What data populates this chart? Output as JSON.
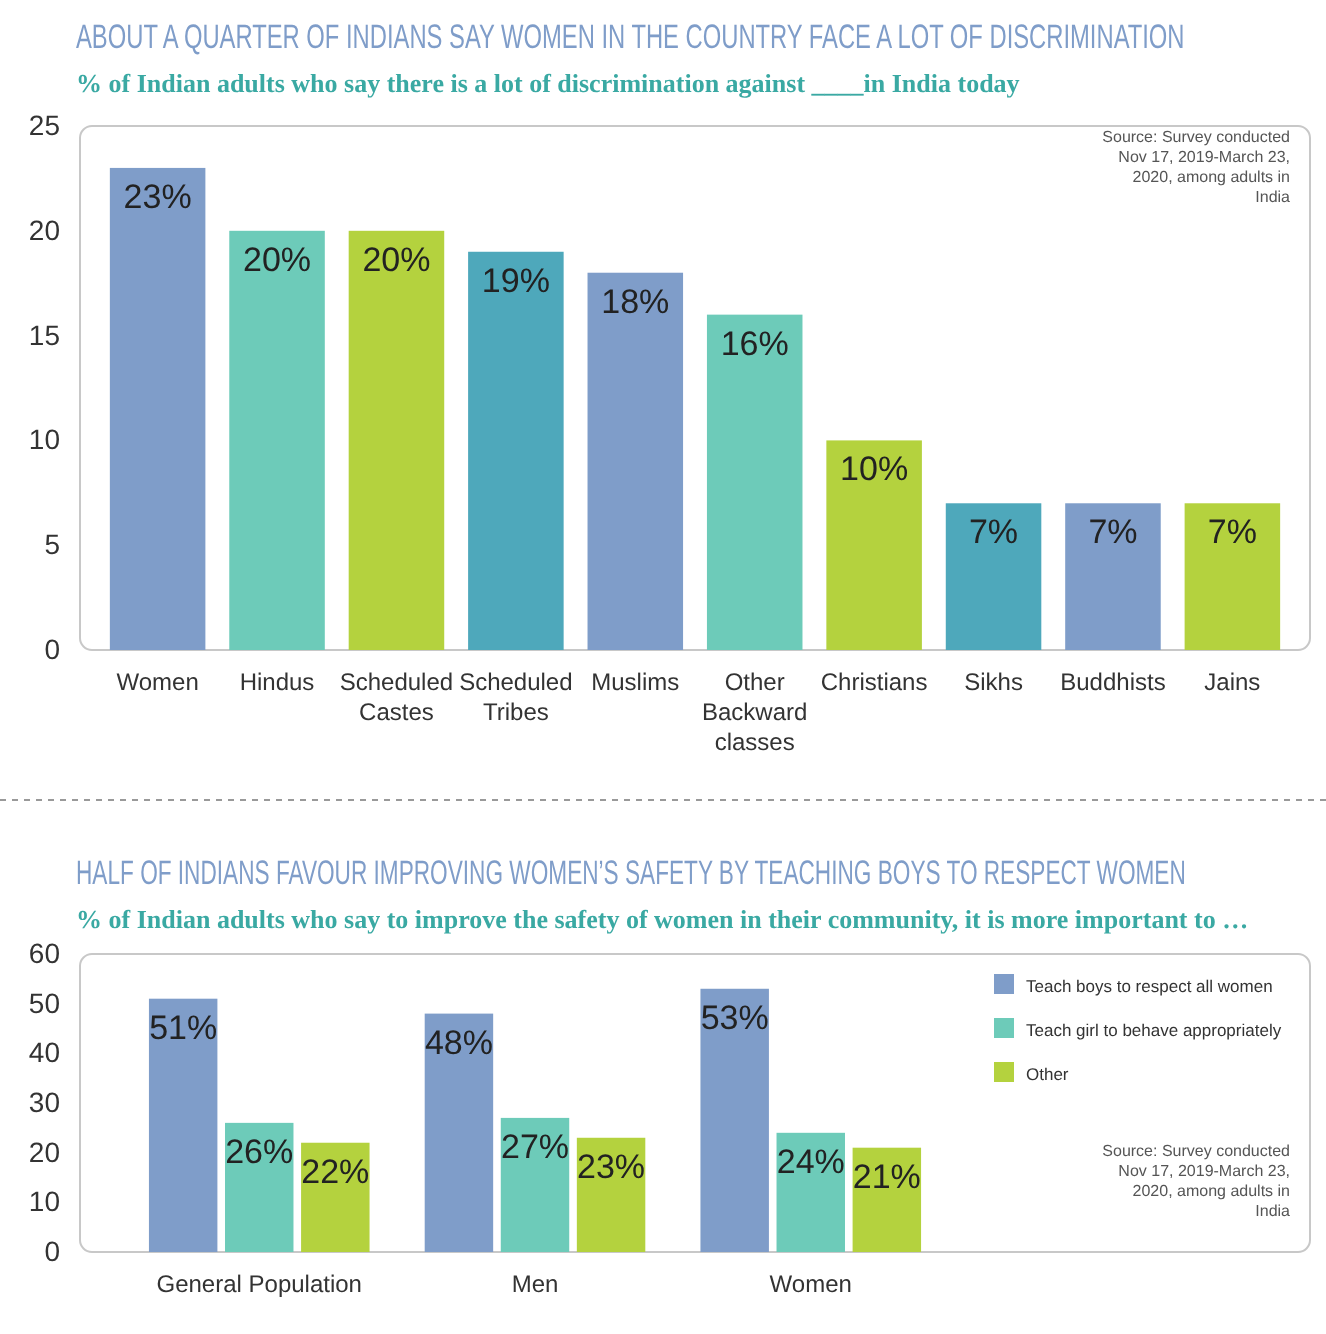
{
  "chart_data": [
    {
      "type": "bar",
      "title": "ABOUT A QUARTER OF INDIANS SAY WOMEN IN THE COUNTRY FACE A LOT OF DISCRIMINATION",
      "subtitle": "% of Indian adults who say there is a lot of discrimination against ____in India today",
      "categories": [
        "Women",
        "Hindus",
        "Scheduled Castes",
        "Scheduled Tribes",
        "Muslims",
        "Other Backward classes",
        "Christians",
        "Sikhs",
        "Buddhists",
        "Jains"
      ],
      "values": [
        23,
        20,
        20,
        19,
        18,
        16,
        10,
        7,
        7,
        7
      ],
      "value_labels": [
        "23%",
        "20%",
        "20%",
        "19%",
        "18%",
        "16%",
        "10%",
        "7%",
        "7%",
        "7%"
      ],
      "colors": [
        "#7f9dc9",
        "#6dcbb9",
        "#b4d23e",
        "#4ea8bb",
        "#7f9dc9",
        "#6dcbb9",
        "#b4d23e",
        "#4ea8bb",
        "#7f9dc9",
        "#b4d23e"
      ],
      "ylim": [
        0,
        25
      ],
      "yticks": [
        0,
        5,
        10,
        15,
        20,
        25
      ],
      "grid": false,
      "annotations": [
        "Source: Survey conducted Nov 17, 2019-March 23, 2020, among adults in India"
      ]
    },
    {
      "type": "bar",
      "title": "HALF OF INDIANS FAVOUR IMPROVING WOMEN’S SAFETY BY TEACHING BOYS TO RESPECT WOMEN",
      "subtitle": "% of Indian adults who say to improve the safety of women in their community, it is more important to …",
      "categories": [
        "General Population",
        "Men",
        "Women"
      ],
      "series": [
        {
          "name": "Teach boys to respect all women",
          "color": "#7f9dc9",
          "values": [
            51,
            48,
            53
          ],
          "value_labels": [
            "51%",
            "48%",
            "53%"
          ]
        },
        {
          "name": "Teach girl to behave appropriately",
          "color": "#6dcbb9",
          "values": [
            26,
            27,
            24
          ],
          "value_labels": [
            "26%",
            "27%",
            "24%"
          ]
        },
        {
          "name": "Other",
          "color": "#b4d23e",
          "values": [
            22,
            23,
            21
          ],
          "value_labels": [
            "22%",
            "23%",
            "21%"
          ]
        }
      ],
      "ylim": [
        0,
        60
      ],
      "yticks": [
        0,
        10,
        20,
        30,
        40,
        50,
        60
      ],
      "grid": false,
      "legend": "top right",
      "annotations": [
        "Source: Survey conducted Nov 17, 2019-March 23, 2020, among adults in India"
      ]
    }
  ]
}
